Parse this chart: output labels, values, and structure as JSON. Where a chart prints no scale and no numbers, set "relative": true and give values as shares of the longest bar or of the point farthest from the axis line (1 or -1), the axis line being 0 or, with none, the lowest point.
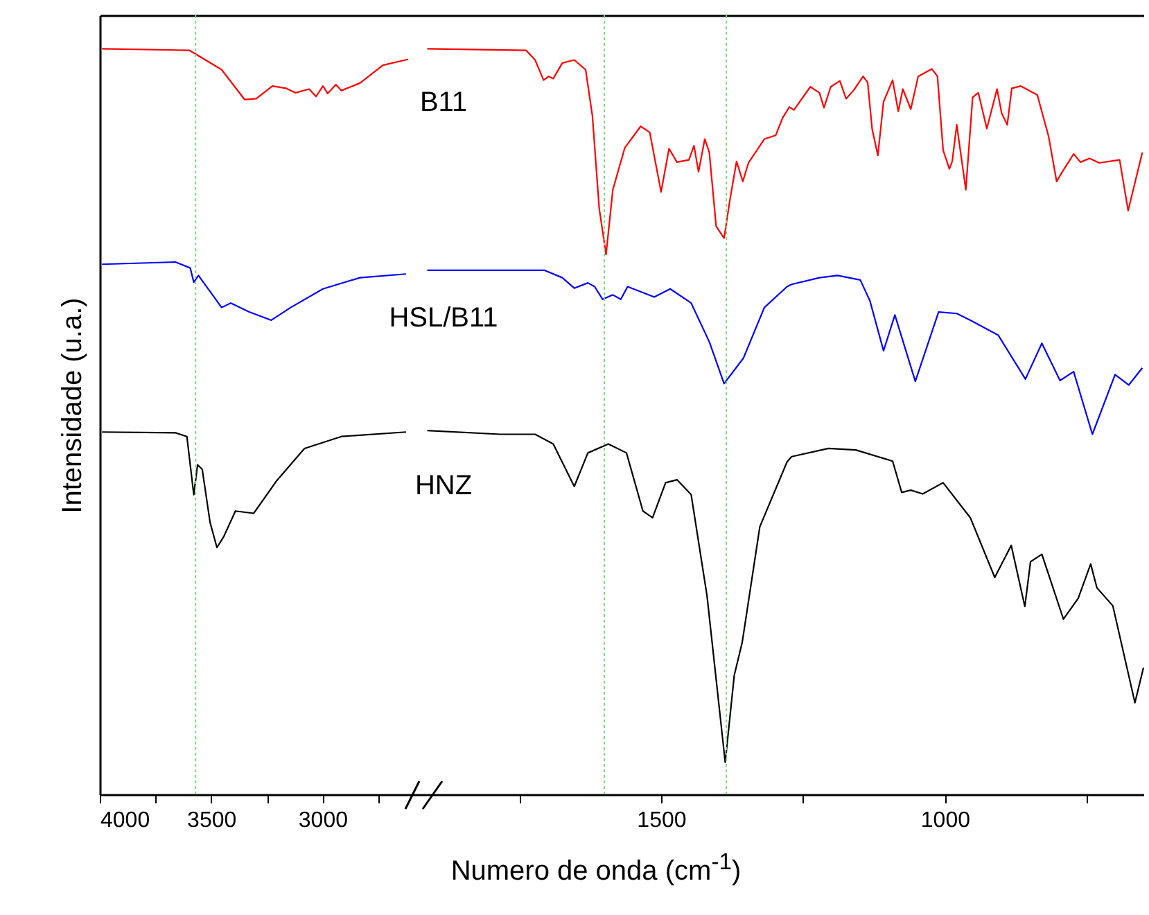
{
  "chart_data": [
    {
      "type": "line",
      "ylabel": "Intensidade (u.a.)",
      "relative": true,
      "xlim": [
        4000,
        2550
      ],
      "xticks": [
        4000,
        {
          "value": 3750,
          "label": null
        },
        3500,
        {
          "value": 3250,
          "label": null
        },
        3000,
        {
          "value": 2750,
          "label": null
        }
      ],
      "marker": "none",
      "line_style": "solid",
      "ref_lines": [
        {
          "axis": "x",
          "value": 3570,
          "color": "#77dd77",
          "line_style": "dotted"
        }
      ],
      "series": [
        {
          "name": "B11",
          "color": "#ff0000",
          "x": [
            3990,
            3598,
            3453,
            3350,
            3298,
            3225,
            3163,
            3122,
            3060,
            3029,
            2998,
            2977,
            2940,
            2915,
            2832,
            2729,
            2615
          ],
          "values": [
            1.0,
            0.998,
            0.972,
            0.932,
            0.933,
            0.95,
            0.947,
            0.941,
            0.946,
            0.936,
            0.95,
            0.94,
            0.952,
            0.944,
            0.954,
            0.978,
            0.986
          ]
        },
        {
          "name": "HSL/B11",
          "color": "#0000ff",
          "x": [
            3990,
            3660,
            3594,
            3578,
            3557,
            3453,
            3412,
            3329,
            3230,
            3143,
            2998,
            2832,
            2625
          ],
          "values": [
            0.711,
            0.714,
            0.706,
            0.687,
            0.696,
            0.653,
            0.659,
            0.647,
            0.636,
            0.653,
            0.678,
            0.693,
            0.698
          ]
        },
        {
          "name": "HNZ",
          "color": "#000000",
          "x": [
            3990,
            3660,
            3609,
            3578,
            3561,
            3540,
            3505,
            3474,
            3443,
            3391,
            3309,
            3205,
            3081,
            2915,
            2625
          ],
          "values": [
            0.486,
            0.485,
            0.48,
            0.402,
            0.442,
            0.436,
            0.365,
            0.331,
            0.346,
            0.38,
            0.377,
            0.421,
            0.464,
            0.48,
            0.486
          ]
        }
      ]
    },
    {
      "type": "line",
      "xlabel": "Numero de onda (cm$^{-1}$)",
      "relative": true,
      "xlim": [
        1920,
        650
      ],
      "xticks": [
        {
          "value": 1750,
          "label": null
        },
        1500,
        {
          "value": 1250,
          "label": null
        },
        1000,
        {
          "value": 750,
          "label": null
        }
      ],
      "marker": "none",
      "line_style": "solid",
      "ref_lines": [
        {
          "axis": "x",
          "value": 1600,
          "color": "#77dd77",
          "line_style": "dotted"
        },
        {
          "axis": "x",
          "value": 1385,
          "color": "#77dd77",
          "line_style": "dotted"
        }
      ],
      "series": [
        {
          "color": "#ff0000",
          "x": [
            1912,
            1738,
            1722,
            1707,
            1698,
            1690,
            1674,
            1653,
            1633,
            1621,
            1609,
            1597,
            1585,
            1564,
            1536,
            1520,
            1500,
            1486,
            1472,
            1451,
            1442,
            1434,
            1423,
            1415,
            1403,
            1389,
            1379,
            1367,
            1356,
            1346,
            1318,
            1298,
            1286,
            1274,
            1266,
            1237,
            1221,
            1213,
            1201,
            1185,
            1174,
            1161,
            1144,
            1136,
            1128,
            1118,
            1108,
            1092,
            1082,
            1074,
            1060,
            1047,
            1023,
            1013,
            1003,
            992,
            987,
            979,
            963,
            951,
            941,
            926,
            908,
            900,
            890,
            882,
            866,
            837,
            817,
            803,
            793,
            773,
            761,
            745,
            728,
            692,
            677,
            652
          ],
          "values": [
            1.0,
            0.998,
            0.985,
            0.958,
            0.963,
            0.96,
            0.981,
            0.985,
            0.972,
            0.91,
            0.786,
            0.724,
            0.811,
            0.867,
            0.896,
            0.888,
            0.808,
            0.866,
            0.848,
            0.851,
            0.87,
            0.835,
            0.879,
            0.861,
            0.762,
            0.746,
            0.796,
            0.849,
            0.822,
            0.847,
            0.879,
            0.884,
            0.907,
            0.922,
            0.918,
            0.949,
            0.941,
            0.921,
            0.949,
            0.957,
            0.933,
            0.944,
            0.963,
            0.955,
            0.892,
            0.857,
            0.929,
            0.958,
            0.916,
            0.946,
            0.919,
            0.963,
            0.973,
            0.963,
            0.864,
            0.839,
            0.849,
            0.898,
            0.811,
            0.935,
            0.941,
            0.893,
            0.946,
            0.914,
            0.898,
            0.947,
            0.95,
            0.938,
            0.882,
            0.822,
            0.835,
            0.859,
            0.848,
            0.853,
            0.847,
            0.851,
            0.783,
            0.861
          ]
        },
        {
          "color": "#0000ff",
          "x": [
            1912,
            1706,
            1674,
            1653,
            1629,
            1617,
            1603,
            1585,
            1571,
            1559,
            1512,
            1484,
            1447,
            1415,
            1389,
            1355,
            1318,
            1278,
            1270,
            1221,
            1189,
            1149,
            1132,
            1108,
            1088,
            1052,
            1011,
            979,
            955,
            906,
            858,
            829,
            797,
            773,
            740,
            700,
            676,
            652
          ],
          "values": [
            0.703,
            0.703,
            0.693,
            0.679,
            0.686,
            0.681,
            0.664,
            0.67,
            0.664,
            0.681,
            0.667,
            0.678,
            0.659,
            0.607,
            0.551,
            0.585,
            0.653,
            0.681,
            0.684,
            0.693,
            0.696,
            0.69,
            0.662,
            0.595,
            0.643,
            0.554,
            0.647,
            0.645,
            0.636,
            0.616,
            0.557,
            0.605,
            0.555,
            0.567,
            0.483,
            0.563,
            0.549,
            0.572
          ]
        },
        {
          "color": "#000000",
          "x": [
            1912,
            1783,
            1722,
            1690,
            1653,
            1629,
            1593,
            1561,
            1532,
            1515,
            1492,
            1472,
            1447,
            1419,
            1387,
            1371,
            1357,
            1326,
            1278,
            1270,
            1205,
            1157,
            1092,
            1076,
            1060,
            1039,
            1003,
            955,
            912,
            883,
            859,
            849,
            829,
            791,
            765,
            743,
            732,
            704,
            665,
            650
          ],
          "values": [
            0.488,
            0.483,
            0.483,
            0.47,
            0.413,
            0.458,
            0.47,
            0.458,
            0.38,
            0.371,
            0.418,
            0.422,
            0.402,
            0.266,
            0.043,
            0.16,
            0.204,
            0.359,
            0.446,
            0.453,
            0.464,
            0.462,
            0.447,
            0.405,
            0.408,
            0.403,
            0.418,
            0.371,
            0.291,
            0.334,
            0.252,
            0.312,
            0.322,
            0.235,
            0.263,
            0.309,
            0.277,
            0.253,
            0.123,
            0.17
          ]
        }
      ]
    }
  ]
}
